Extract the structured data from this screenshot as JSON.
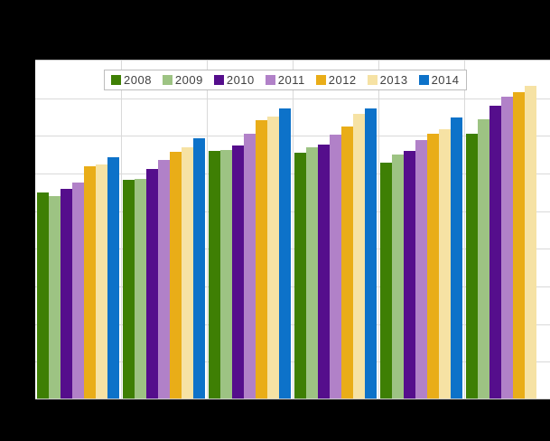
{
  "canvas": {
    "background_color": "#000000",
    "plot_background_color": "#ffffff",
    "grid_color": "#d9d9d9",
    "plot_border_color": "#c9c9c9",
    "legend_border_color": "#bdbdbd",
    "legend_text_color": "#404040"
  },
  "legend": {
    "position": "top",
    "items": [
      {
        "label": "2008",
        "color": "#3e7f04"
      },
      {
        "label": "2009",
        "color": "#9dc383"
      },
      {
        "label": "2010",
        "color": "#550e8c"
      },
      {
        "label": "2011",
        "color": "#b181c8"
      },
      {
        "label": "2012",
        "color": "#e9ad18"
      },
      {
        "label": "2013",
        "color": "#f6e2a4"
      },
      {
        "label": "2014",
        "color": "#0d72c9"
      }
    ]
  },
  "chart_data": {
    "type": "bar",
    "title": "",
    "xlabel": "",
    "ylabel": "",
    "categories": [
      "",
      "",
      "",
      "",
      "",
      ""
    ],
    "series": [
      {
        "name": "2008",
        "color": "#3e7f04",
        "values": [
          54.6,
          58.1,
          65.8,
          65.2,
          62.6,
          70.4
        ]
      },
      {
        "name": "2009",
        "color": "#9dc383",
        "values": [
          53.8,
          58.4,
          66.1,
          66.6,
          64.8,
          74.1
        ]
      },
      {
        "name": "2010",
        "color": "#550e8c",
        "values": [
          55.7,
          61.0,
          67.2,
          67.4,
          65.7,
          77.8
        ]
      },
      {
        "name": "2011",
        "color": "#b181c8",
        "values": [
          57.3,
          63.3,
          70.2,
          70.0,
          68.6,
          80.2
        ]
      },
      {
        "name": "2012",
        "color": "#e9ad18",
        "values": [
          61.6,
          65.4,
          73.8,
          72.2,
          70.2,
          81.4
        ]
      },
      {
        "name": "2013",
        "color": "#f6e2a4",
        "values": [
          62.2,
          66.6,
          74.8,
          75.5,
          71.4,
          83.0
        ]
      },
      {
        "name": "2014",
        "color": "#0d72c9",
        "values": [
          64.1,
          69.0,
          77.0,
          77.0,
          74.6,
          null
        ]
      }
    ],
    "ylim": [
      0,
      90
    ],
    "gridline_step": 10,
    "horizontal_gridlines": 10,
    "vertical_gridlines_at_group_boundaries": true,
    "legend_position": "top",
    "axis_tick_labels_visible": false
  }
}
